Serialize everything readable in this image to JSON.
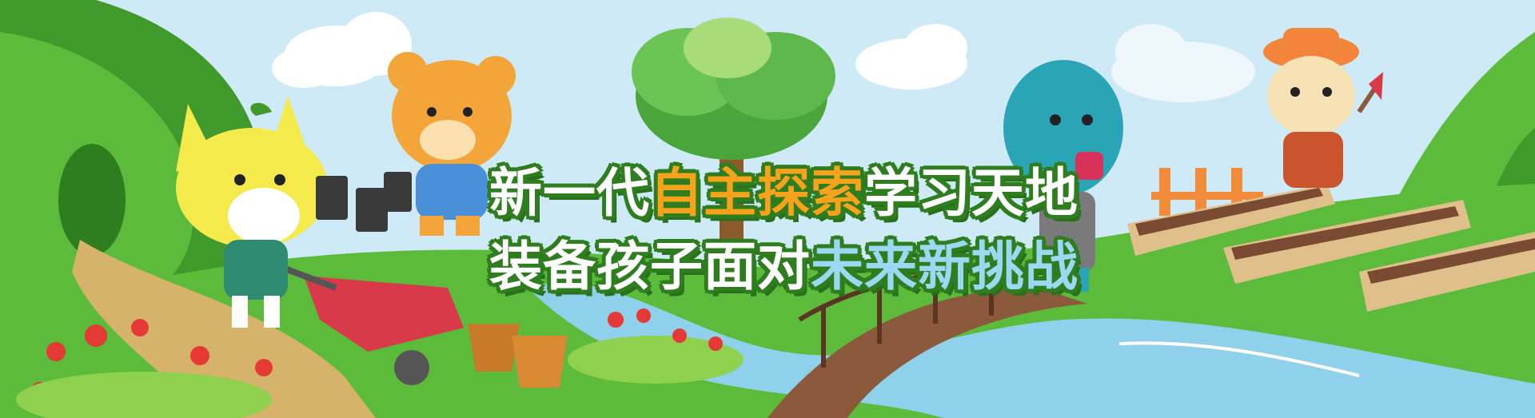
{
  "headline": {
    "line1_part1": "新一代",
    "line1_highlight": "自主探索",
    "line1_part2": "学习天地",
    "line2_part1": "装备孩子面对",
    "line2_highlight": "未来新挑战"
  },
  "colors": {
    "sky": "#cfeaf7",
    "grass": "#5dbb3b",
    "dark_grass": "#3f9a2b",
    "river": "#8fd0ea",
    "text_white": "#ffffff",
    "text_orange": "#f7a21b",
    "text_blue": "#9bd8f2",
    "outline": "#2e7d1f"
  },
  "characters": [
    "yellow-cat",
    "orange-bear",
    "blue-dinosaur",
    "dog-with-hat"
  ]
}
